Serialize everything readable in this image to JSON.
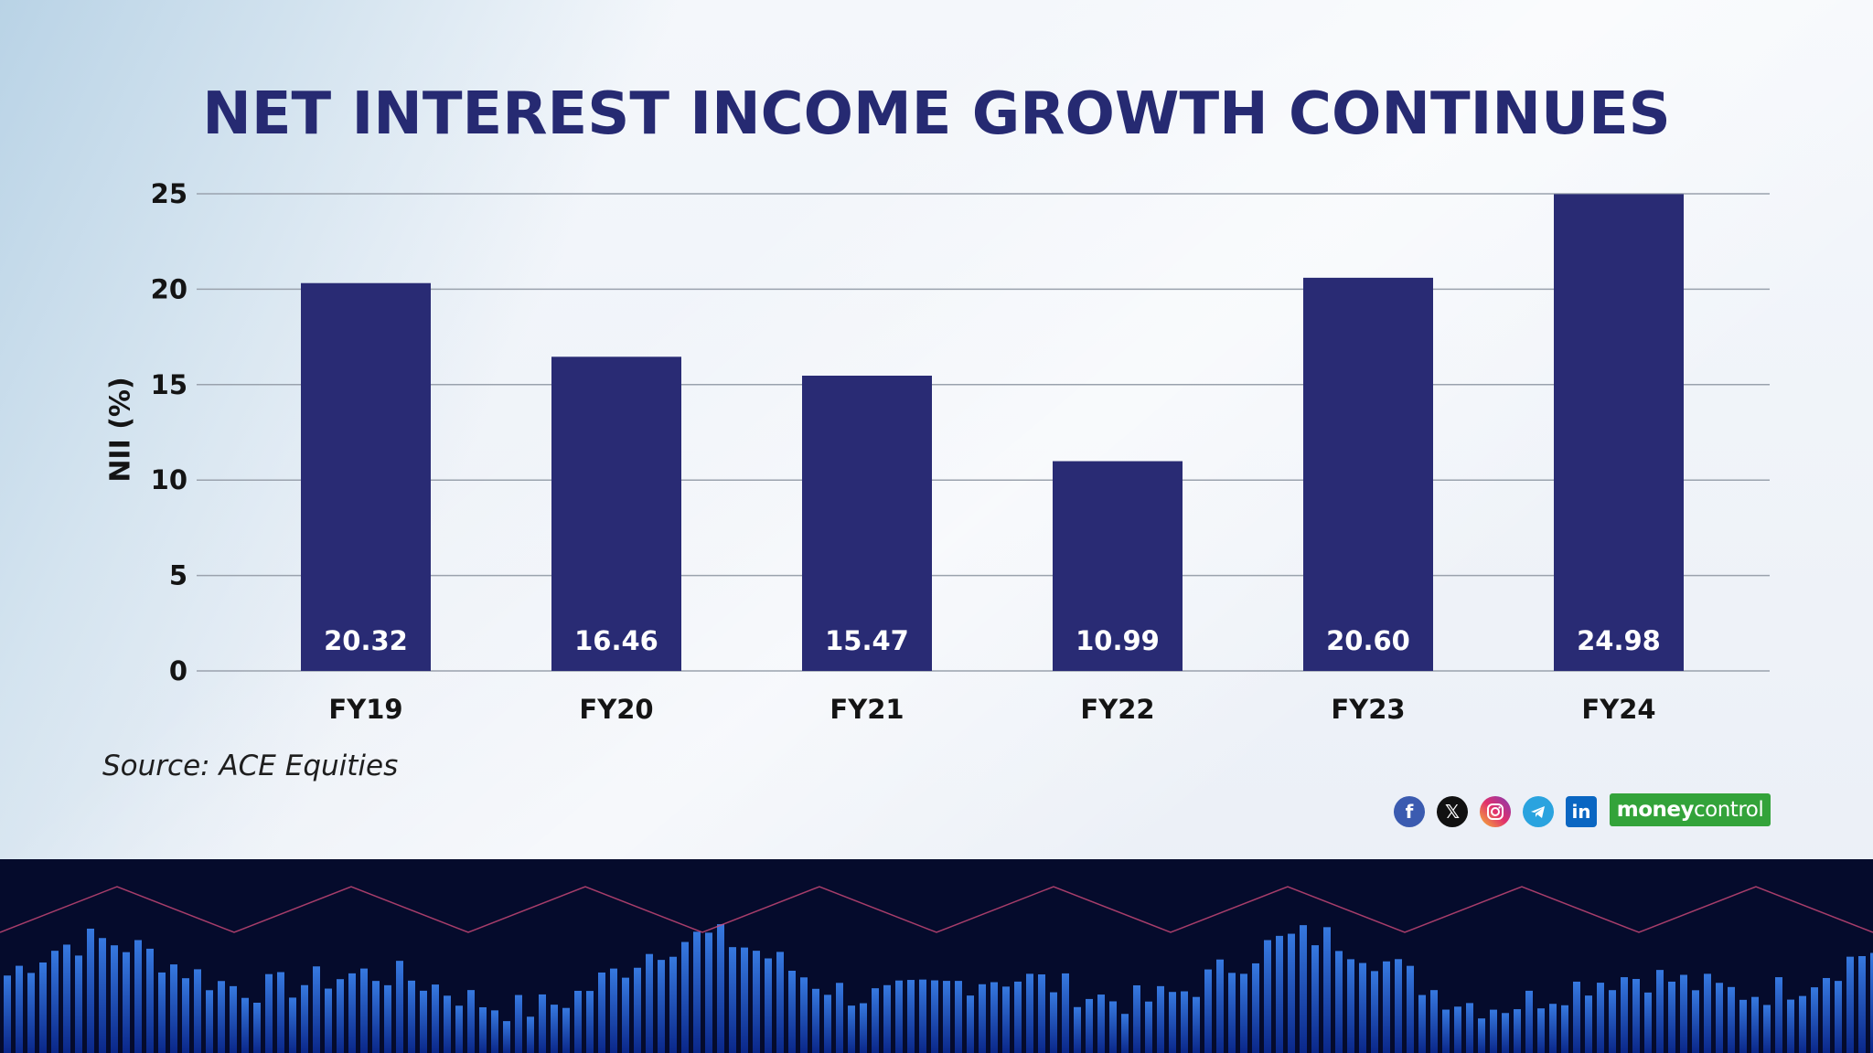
{
  "title": "NET INTEREST INCOME GROWTH CONTINUES",
  "source": "Source: ACE Equities",
  "colors": {
    "bar": "#292b74",
    "title": "#262a72",
    "grid": "#9aa2ad",
    "brand_green": "#33a33a"
  },
  "social_icons": [
    "facebook-icon",
    "x-icon",
    "instagram-icon",
    "telegram-icon",
    "linkedin-icon"
  ],
  "brand": {
    "part1": "money",
    "part2": "control"
  },
  "chart_data": {
    "type": "bar",
    "title": "NET INTEREST INCOME GROWTH CONTINUES",
    "xlabel": "",
    "ylabel": "NII (%)",
    "categories": [
      "FY19",
      "FY20",
      "FY21",
      "FY22",
      "FY23",
      "FY24"
    ],
    "values": [
      20.32,
      16.46,
      15.47,
      10.99,
      20.6,
      24.98
    ],
    "data_labels": [
      "20.32",
      "16.46",
      "15.47",
      "10.99",
      "20.60",
      "24.98"
    ],
    "ylim": [
      0,
      25
    ],
    "yticks": [
      0,
      5,
      10,
      15,
      20,
      25
    ],
    "grid": true,
    "legend": "none"
  }
}
